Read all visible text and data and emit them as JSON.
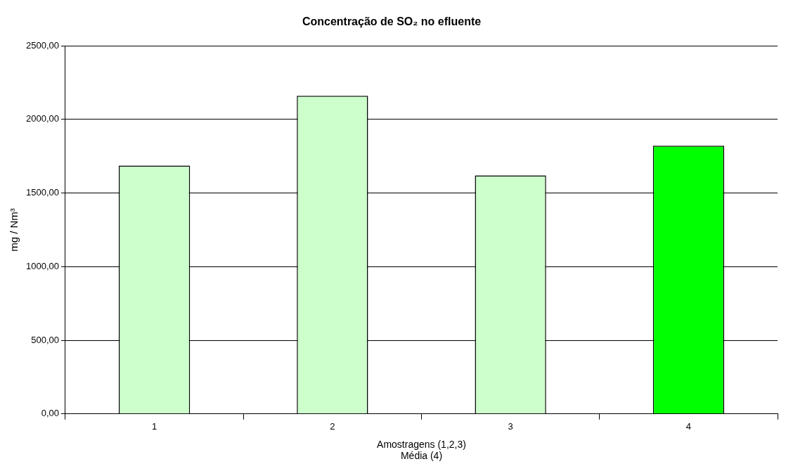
{
  "chart_data": {
    "type": "bar",
    "title": "Concentração de SO₂ no efluente",
    "xlabel": "Amostragens (1,2,3)\nMédia (4)",
    "ylabel": "mg / Nm³",
    "categories": [
      "1",
      "2",
      "3",
      "4"
    ],
    "values": [
      1687,
      2161,
      1620,
      1822
    ],
    "colors": [
      "#ccffcc",
      "#ccffcc",
      "#ccffcc",
      "#00ff00"
    ],
    "ylim": [
      0,
      2500
    ],
    "yticks": [
      {
        "value": 0,
        "label": "0,00"
      },
      {
        "value": 500,
        "label": "500,00"
      },
      {
        "value": 1000,
        "label": "1000,00"
      },
      {
        "value": 1500,
        "label": "1500,00"
      },
      {
        "value": 2000,
        "label": "2000,00"
      },
      {
        "value": 2500,
        "label": "2500,00"
      }
    ],
    "grid": "y",
    "legend": false
  }
}
